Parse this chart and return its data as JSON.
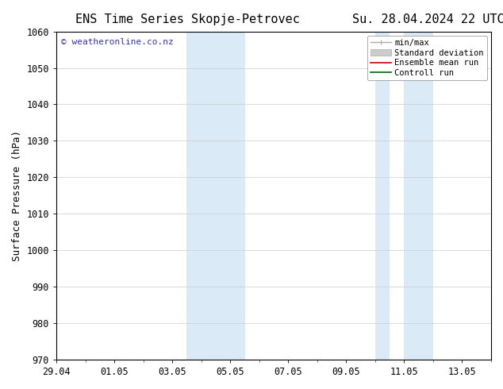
{
  "title_left": "ENS Time Series Skopje-Petrovec",
  "title_right": "Su. 28.04.2024 22 UTC",
  "ylabel": "Surface Pressure (hPa)",
  "ylim": [
    970,
    1060
  ],
  "yticks": [
    970,
    980,
    990,
    1000,
    1010,
    1020,
    1030,
    1040,
    1050,
    1060
  ],
  "xlim": [
    0,
    15
  ],
  "xtick_labels": [
    "29.04",
    "01.05",
    "03.05",
    "05.05",
    "07.05",
    "09.05",
    "11.05",
    "13.05"
  ],
  "xtick_positions": [
    0,
    2,
    4,
    6,
    8,
    10,
    12,
    14
  ],
  "shaded_bands": [
    {
      "x_start": 4.5,
      "x_end": 6.5
    },
    {
      "x_start": 11.0,
      "x_end": 11.5
    },
    {
      "x_start": 12.0,
      "x_end": 13.0
    }
  ],
  "shade_color": "#daeaf7",
  "background_color": "#ffffff",
  "watermark_text": "© weatheronline.co.nz",
  "watermark_color": "#3333bb",
  "font_family": "DejaVu Sans Mono",
  "title_fontsize": 11,
  "tick_fontsize": 8.5,
  "ylabel_fontsize": 9,
  "watermark_fontsize": 8,
  "legend_fontsize": 7.5
}
